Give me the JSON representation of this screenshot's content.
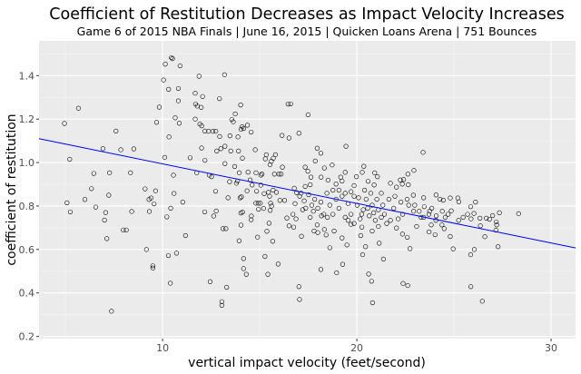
{
  "chart_data": {
    "type": "scatter",
    "title": "Coefficient of Restitution Decreases as Impact Velocity Increases",
    "subtitle": "Game 6 of 2015 NBA Finals | June 16, 2015 | Quicken Loans Arena | 751 Bounces",
    "xlabel": "vertical impact velocity (feet/second)",
    "ylabel": "coefficient of restitution",
    "xlim": [
      3.64,
      31.26
    ],
    "ylim": [
      0.19,
      1.56
    ],
    "x_ticks": [
      10,
      20,
      30
    ],
    "x_tick_labels": [
      "10",
      "20",
      "30"
    ],
    "y_ticks": [
      0.2,
      0.4,
      0.6,
      0.8,
      1.0,
      1.2,
      1.4
    ],
    "y_tick_labels": [
      "0.2",
      "0.4",
      "0.6",
      "0.8",
      "1.0",
      "1.2",
      "1.4"
    ],
    "grid": true,
    "panel_background": "#ebebeb",
    "point_color": "#000000",
    "point_shape": "open-circle",
    "trend_line": {
      "type": "linear",
      "intercept": 1.176,
      "slope": -0.0182,
      "color": "#0000ff"
    },
    "points": [
      [
        4.95,
        1.18
      ],
      [
        5.08,
        0.815
      ],
      [
        5.22,
        1.015
      ],
      [
        5.25,
        0.773
      ],
      [
        5.67,
        1.25
      ],
      [
        6.0,
        0.83
      ],
      [
        6.34,
        0.88
      ],
      [
        6.46,
        0.95
      ],
      [
        6.56,
        0.795
      ],
      [
        6.93,
        1.064
      ],
      [
        7.01,
        0.735
      ],
      [
        7.07,
        0.77
      ],
      [
        7.13,
        0.65
      ],
      [
        7.23,
        0.85
      ],
      [
        7.27,
        0.953
      ],
      [
        7.37,
        0.316
      ],
      [
        7.6,
        1.145
      ],
      [
        7.85,
        1.059
      ],
      [
        7.98,
        0.69
      ],
      [
        8.13,
        0.69
      ],
      [
        8.35,
        0.953
      ],
      [
        8.41,
        0.775
      ],
      [
        8.52,
        1.063
      ],
      [
        9.1,
        0.879
      ],
      [
        9.17,
        0.6
      ],
      [
        9.3,
        0.83
      ],
      [
        9.32,
        0.775
      ],
      [
        9.41,
        0.837
      ],
      [
        9.5,
        0.525
      ],
      [
        9.5,
        0.515
      ],
      [
        9.56,
        0.81
      ],
      [
        9.64,
        0.87
      ],
      [
        9.69,
        1.185
      ],
      [
        9.83,
        1.255
      ],
      [
        10.05,
        1.38
      ],
      [
        10.11,
        1.024
      ],
      [
        10.14,
        1.453
      ],
      [
        10.22,
        0.75
      ],
      [
        10.3,
        0.572
      ],
      [
        10.31,
        1.337
      ],
      [
        10.33,
        1.118
      ],
      [
        10.4,
        0.445
      ],
      [
        10.42,
        0.79
      ],
      [
        10.45,
        1.483
      ],
      [
        10.51,
        1.478
      ],
      [
        10.56,
        0.942
      ],
      [
        10.59,
        0.858
      ],
      [
        10.65,
        1.206
      ],
      [
        10.72,
        0.583
      ],
      [
        10.81,
        1.341
      ],
      [
        10.81,
        1.284
      ],
      [
        10.86,
        1.181
      ],
      [
        10.9,
        1.445
      ],
      [
        11.04,
        0.818
      ],
      [
        11.18,
        0.664
      ],
      [
        11.42,
        1.022
      ],
      [
        11.68,
        1.319
      ],
      [
        11.68,
        1.2
      ],
      [
        11.7,
        1.269
      ],
      [
        11.76,
        0.953
      ],
      [
        11.79,
        1.26
      ],
      [
        11.88,
        1.397
      ],
      [
        11.92,
        1.177
      ],
      [
        11.99,
        1.254
      ],
      [
        12.01,
        1.169
      ],
      [
        12.01,
        1.067
      ],
      [
        12.06,
        1.304
      ],
      [
        12.17,
        0.773
      ],
      [
        12.18,
        1.01
      ],
      [
        12.18,
        1.145
      ],
      [
        12.37,
        1.144
      ],
      [
        12.4,
        0.942
      ],
      [
        12.45,
        0.452
      ],
      [
        12.52,
        0.935
      ],
      [
        12.59,
        1.144
      ],
      [
        12.63,
        0.754
      ],
      [
        12.73,
        0.868
      ],
      [
        12.74,
        1.144
      ],
      [
        12.76,
        0.777
      ],
      [
        12.79,
        1.053
      ],
      [
        12.93,
        1.294
      ],
      [
        12.94,
        1.12
      ],
      [
        13.0,
        1.064
      ],
      [
        13.05,
        0.36
      ],
      [
        13.05,
        0.343
      ],
      [
        13.11,
        0.696
      ],
      [
        13.19,
        1.404
      ],
      [
        13.21,
        0.995
      ],
      [
        13.21,
        1.075
      ],
      [
        13.26,
        0.696
      ],
      [
        13.3,
        0.426
      ],
      [
        13.37,
        0.838
      ],
      [
        13.45,
        0.912
      ],
      [
        13.47,
        1.123
      ],
      [
        13.51,
        1.053
      ],
      [
        13.56,
        1.198
      ],
      [
        13.64,
        1.188
      ],
      [
        13.71,
        0.982
      ],
      [
        13.74,
        1.224
      ],
      [
        13.8,
        0.905
      ],
      [
        13.86,
        0.915
      ],
      [
        13.88,
        1.118
      ],
      [
        13.91,
        1.053
      ],
      [
        13.94,
        0.64
      ],
      [
        13.95,
        0.953
      ],
      [
        13.99,
        0.838
      ],
      [
        14.02,
        1.265
      ],
      [
        14.03,
        0.768
      ],
      [
        14.04,
        1.153
      ],
      [
        14.04,
        0.712
      ],
      [
        14.06,
        0.842
      ],
      [
        14.1,
        1.165
      ],
      [
        14.11,
        1.02
      ],
      [
        14.12,
        0.772
      ],
      [
        14.17,
        1.157
      ],
      [
        14.17,
        0.558
      ],
      [
        14.17,
        0.512
      ],
      [
        14.31,
        0.486
      ],
      [
        14.35,
        0.87
      ],
      [
        14.37,
        1.172
      ],
      [
        14.4,
        0.956
      ],
      [
        14.51,
        0.92
      ],
      [
        14.56,
        1.14
      ],
      [
        14.56,
        0.737
      ],
      [
        14.57,
        0.754
      ],
      [
        14.61,
        0.897
      ],
      [
        14.77,
        1.059
      ],
      [
        14.8,
        0.813
      ],
      [
        14.81,
        0.953
      ],
      [
        14.84,
        0.868
      ],
      [
        14.89,
        0.657
      ],
      [
        14.92,
        0.813
      ],
      [
        14.94,
        0.785
      ],
      [
        15.03,
        0.813
      ],
      [
        15.06,
        0.896
      ],
      [
        15.06,
        0.942
      ],
      [
        15.12,
        0.947
      ],
      [
        15.2,
        0.789
      ],
      [
        15.23,
        0.857
      ],
      [
        15.27,
        0.568
      ],
      [
        15.29,
        1.017
      ],
      [
        15.34,
        1.036
      ],
      [
        15.37,
        0.684
      ],
      [
        15.42,
        0.486
      ],
      [
        15.45,
        0.863
      ],
      [
        15.48,
        0.721
      ],
      [
        15.51,
        0.845
      ],
      [
        15.53,
        0.99
      ],
      [
        15.54,
        0.78
      ],
      [
        15.56,
        0.813
      ],
      [
        15.6,
        1.006
      ],
      [
        15.61,
        0.8
      ],
      [
        15.67,
        0.638
      ],
      [
        15.69,
        0.873
      ],
      [
        15.7,
        1.02
      ],
      [
        15.76,
        0.947
      ],
      [
        15.81,
        1.036
      ],
      [
        15.86,
        0.863
      ],
      [
        15.95,
        0.533
      ],
      [
        15.99,
        0.947
      ],
      [
        16.04,
        0.826
      ],
      [
        16.1,
        0.947
      ],
      [
        16.15,
        1.125
      ],
      [
        16.17,
        0.979
      ],
      [
        16.28,
        0.826
      ],
      [
        16.4,
        0.745
      ],
      [
        16.46,
        1.269
      ],
      [
        16.51,
        1.113
      ],
      [
        16.51,
        0.709
      ],
      [
        16.59,
        1.27
      ],
      [
        17.49,
        1.22
      ],
      [
        17.02,
        1.135
      ],
      [
        19.44,
        1.075
      ],
      [
        23.41,
        1.047
      ],
      [
        17.96,
        1.066
      ],
      [
        18.15,
        1.043
      ],
      [
        17.86,
        1.007
      ],
      [
        18.73,
        0.989
      ],
      [
        20.36,
        0.983
      ],
      [
        19.4,
        0.955
      ],
      [
        22.94,
        0.964
      ],
      [
        17.34,
        0.979
      ],
      [
        17.48,
        0.96
      ],
      [
        17.64,
        0.933
      ],
      [
        18.33,
        0.975
      ],
      [
        18.16,
        0.933
      ],
      [
        19.17,
        0.933
      ],
      [
        19.98,
        0.935
      ],
      [
        20.28,
        0.955
      ],
      [
        20.92,
        0.953
      ],
      [
        21.06,
        0.935
      ],
      [
        22.63,
        0.947
      ],
      [
        22.24,
        0.92
      ],
      [
        22.41,
        0.922
      ],
      [
        22.65,
        0.898
      ],
      [
        21.73,
        0.905
      ],
      [
        22.34,
        0.901
      ],
      [
        20.89,
        0.897
      ],
      [
        16.78,
        0.882
      ],
      [
        16.9,
        0.862
      ],
      [
        17.6,
        0.898
      ],
      [
        18.52,
        0.919
      ],
      [
        18.93,
        0.901
      ],
      [
        19.24,
        0.915
      ],
      [
        19.86,
        0.894
      ],
      [
        20.58,
        0.914
      ],
      [
        21.26,
        0.859
      ],
      [
        22.04,
        0.887
      ],
      [
        24.08,
        0.851
      ],
      [
        23.44,
        0.838
      ],
      [
        22.91,
        0.85
      ],
      [
        24.81,
        0.837
      ],
      [
        25.2,
        0.837
      ],
      [
        25.25,
        0.82
      ],
      [
        26.11,
        0.818
      ],
      [
        24.28,
        0.831
      ],
      [
        24.45,
        0.827
      ],
      [
        17.06,
        0.845
      ],
      [
        17.29,
        0.824
      ],
      [
        17.21,
        0.783
      ],
      [
        16.82,
        0.811
      ],
      [
        16.87,
        0.741
      ],
      [
        16.71,
        0.762
      ],
      [
        16.75,
        0.703
      ],
      [
        17.15,
        0.661
      ],
      [
        17.8,
        0.685
      ],
      [
        17.96,
        0.713
      ],
      [
        17.99,
        0.678
      ],
      [
        18.33,
        0.692
      ],
      [
        18.42,
        0.667
      ],
      [
        18.61,
        0.608
      ],
      [
        18.83,
        0.685
      ],
      [
        19.24,
        0.653
      ],
      [
        19.49,
        0.621
      ],
      [
        19.7,
        0.716
      ],
      [
        20.3,
        0.576
      ],
      [
        20.45,
        0.613
      ],
      [
        20.2,
        0.664
      ],
      [
        20.26,
        0.703
      ],
      [
        20.61,
        0.487
      ],
      [
        20.76,
        0.454
      ],
      [
        20.81,
        0.355
      ],
      [
        21.15,
        0.629
      ],
      [
        21.37,
        0.556
      ],
      [
        18.15,
        0.508
      ],
      [
        18.96,
        0.493
      ],
      [
        19.27,
        0.532
      ],
      [
        17.02,
        0.429
      ],
      [
        17.05,
        0.37
      ],
      [
        22.38,
        0.444
      ],
      [
        22.62,
        0.434
      ],
      [
        22.74,
        0.604
      ],
      [
        22.6,
        0.656
      ],
      [
        22.35,
        0.671
      ],
      [
        23.72,
        0.681
      ],
      [
        24.03,
        0.668
      ],
      [
        24.81,
        0.66
      ],
      [
        24.96,
        0.603
      ],
      [
        24.5,
        0.696
      ],
      [
        25.86,
        0.576
      ],
      [
        26.05,
        0.6
      ],
      [
        25.87,
        0.429
      ],
      [
        26.46,
        0.362
      ],
      [
        26.59,
        0.659
      ],
      [
        27.27,
        0.613
      ],
      [
        27.16,
        0.689
      ],
      [
        27.2,
        0.713
      ],
      [
        27.18,
        0.727
      ],
      [
        27.34,
        0.769
      ],
      [
        28.33,
        0.765
      ],
      [
        26.99,
        0.756
      ],
      [
        26.83,
        0.739
      ],
      [
        26.67,
        0.744
      ],
      [
        26.36,
        0.709
      ],
      [
        26.34,
        0.744
      ],
      [
        26.03,
        0.766
      ],
      [
        25.88,
        0.741
      ],
      [
        25.86,
        0.797
      ],
      [
        25.7,
        0.762
      ],
      [
        25.47,
        0.748
      ],
      [
        25.24,
        0.734
      ],
      [
        24.86,
        0.778
      ],
      [
        24.7,
        0.762
      ],
      [
        24.55,
        0.748
      ],
      [
        24.4,
        0.776
      ],
      [
        24.09,
        0.755
      ],
      [
        23.86,
        0.79
      ],
      [
        23.71,
        0.762
      ],
      [
        23.47,
        0.797
      ],
      [
        23.31,
        0.748
      ],
      [
        23.08,
        0.706
      ],
      [
        22.92,
        0.776
      ],
      [
        22.67,
        0.804
      ],
      [
        22.36,
        0.762
      ],
      [
        22.13,
        0.741
      ],
      [
        21.9,
        0.79
      ],
      [
        21.54,
        0.72
      ],
      [
        21.26,
        0.748
      ],
      [
        21.11,
        0.783
      ],
      [
        20.95,
        0.734
      ],
      [
        20.79,
        0.804
      ],
      [
        20.64,
        0.755
      ],
      [
        20.48,
        0.831
      ],
      [
        20.33,
        0.783
      ],
      [
        20.17,
        0.741
      ],
      [
        20.02,
        0.804
      ],
      [
        19.86,
        0.845
      ],
      [
        19.7,
        0.762
      ],
      [
        19.55,
        0.811
      ],
      [
        19.4,
        0.748
      ],
      [
        19.24,
        0.845
      ],
      [
        19.08,
        0.79
      ],
      [
        18.93,
        0.831
      ],
      [
        18.77,
        0.762
      ],
      [
        18.61,
        0.804
      ],
      [
        18.46,
        0.859
      ],
      [
        18.3,
        0.762
      ],
      [
        18.15,
        0.818
      ],
      [
        17.99,
        0.79
      ],
      [
        17.83,
        0.831
      ],
      [
        17.68,
        0.804
      ],
      [
        17.52,
        0.852
      ],
      [
        17.37,
        0.79
      ],
      [
        20.4,
        0.873
      ],
      [
        20.72,
        0.859
      ],
      [
        21.03,
        0.831
      ],
      [
        21.34,
        0.804
      ],
      [
        21.65,
        0.831
      ],
      [
        21.96,
        0.845
      ],
      [
        22.27,
        0.818
      ],
      [
        22.59,
        0.831
      ],
      [
        19.7,
        0.866
      ],
      [
        20.09,
        0.838
      ],
      [
        19.4,
        0.859
      ],
      [
        19.08,
        0.873
      ],
      [
        18.77,
        0.873
      ],
      [
        20.56,
        0.79
      ],
      [
        20.25,
        0.762
      ],
      [
        20.87,
        0.769
      ],
      [
        21.42,
        0.762
      ],
      [
        21.73,
        0.734
      ],
      [
        21.11,
        0.706
      ],
      [
        20.79,
        0.685
      ],
      [
        22.98,
        0.804
      ],
      [
        23.21,
        0.776
      ],
      [
        23.75,
        0.776
      ],
      [
        23.44,
        0.748
      ],
      [
        24.07,
        0.734
      ],
      [
        24.38,
        0.713
      ],
      [
        23.83,
        0.713
      ],
      [
        22.04,
        0.699
      ],
      [
        19.86,
        0.72
      ],
      [
        19.55,
        0.734
      ],
      [
        18.49,
        0.748
      ],
      [
        18.18,
        0.755
      ],
      [
        17.6,
        0.748
      ],
      [
        17.76,
        0.776
      ],
      [
        17.34,
        0.89
      ],
      [
        17.13,
        0.859
      ]
    ]
  }
}
